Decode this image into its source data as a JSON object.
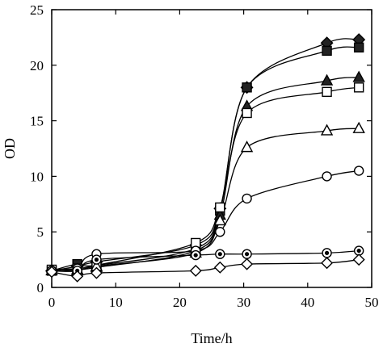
{
  "chart_data": {
    "type": "line",
    "xlabel": "Time/h",
    "ylabel": "OD",
    "xlim": [
      0,
      50
    ],
    "ylim": [
      0,
      25
    ],
    "xticks": [
      0,
      10,
      20,
      30,
      40,
      50
    ],
    "yticks": [
      0,
      5,
      10,
      15,
      20,
      25
    ],
    "grid": false,
    "series": [
      {
        "marker": "filled-diamond",
        "x": [
          0,
          4,
          7,
          22.5,
          26.3,
          30.5,
          43,
          48
        ],
        "y": [
          1.5,
          1.9,
          2.3,
          3.8,
          7.1,
          18.0,
          22.0,
          22.3
        ]
      },
      {
        "marker": "filled-square",
        "x": [
          0,
          4,
          7,
          22.5,
          26.3,
          30.5,
          43,
          48
        ],
        "y": [
          1.5,
          2.1,
          2.0,
          3.5,
          6.9,
          18.0,
          21.3,
          21.6
        ]
      },
      {
        "marker": "filled-triangle",
        "x": [
          0,
          4,
          7,
          22.5,
          26.3,
          30.5,
          43,
          48
        ],
        "y": [
          1.5,
          1.6,
          1.8,
          3.3,
          6.5,
          16.3,
          18.6,
          18.9
        ]
      },
      {
        "marker": "open-square",
        "x": [
          0,
          4,
          7,
          22.5,
          26.3,
          30.5,
          43,
          48
        ],
        "y": [
          1.6,
          1.7,
          2.0,
          4.0,
          7.2,
          15.7,
          17.6,
          18.0
        ]
      },
      {
        "marker": "open-triangle",
        "x": [
          0,
          4,
          7,
          22.5,
          26.3,
          30.5,
          43,
          48
        ],
        "y": [
          1.5,
          1.5,
          1.9,
          3.1,
          6.0,
          12.6,
          14.1,
          14.3
        ]
      },
      {
        "marker": "open-circle",
        "x": [
          0,
          4,
          7,
          22.5,
          26.3,
          30.5,
          43,
          48
        ],
        "y": [
          1.5,
          1.7,
          3.0,
          3.3,
          5.0,
          8.0,
          10.0,
          10.5
        ]
      },
      {
        "marker": "circle-with-dot",
        "x": [
          0,
          4,
          7,
          22.5,
          26.3,
          30.5,
          43,
          48
        ],
        "y": [
          1.5,
          1.5,
          2.5,
          2.9,
          3.0,
          3.0,
          3.1,
          3.3
        ]
      },
      {
        "marker": "open-diamond",
        "x": [
          0,
          4,
          7,
          22.5,
          26.3,
          30.5,
          43,
          48
        ],
        "y": [
          1.4,
          1.0,
          1.3,
          1.5,
          1.8,
          2.1,
          2.2,
          2.5
        ]
      }
    ]
  }
}
